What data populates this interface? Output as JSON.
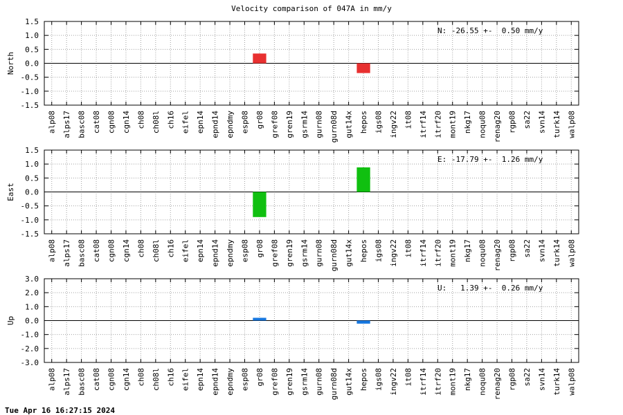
{
  "chart_data": {
    "type": "bar",
    "title": "Velocity comparison of 047A in mm/y",
    "categories": [
      "alp08",
      "alps17",
      "basc08",
      "cat08",
      "cgn08",
      "cgn14",
      "ch08",
      "ch08l",
      "ch16",
      "eifel",
      "epn14",
      "epnd14",
      "epndmy",
      "esp08",
      "gr08",
      "gref08",
      "gren19",
      "gsrm14",
      "gurn08",
      "gurn08d",
      "gut14x",
      "hepos",
      "igs08",
      "ingv22",
      "it08",
      "itrf14",
      "itrf20",
      "mont19",
      "nkg17",
      "noqu08",
      "renag20",
      "rgp08",
      "sa22",
      "svn14",
      "turk14",
      "walp08"
    ],
    "panels": [
      {
        "ylabel": "North",
        "ylim": [
          -1.5,
          1.5
        ],
        "yticks": [
          "1.5",
          "1.0",
          "0.5",
          "0.0",
          "-0.5",
          "-1.0",
          "-1.5"
        ],
        "annotation": "N: -26.55 +-  0.50 mm/y",
        "color": "#e83030",
        "values": {
          "gr08": 0.35,
          "hepos": -0.35
        }
      },
      {
        "ylabel": "East",
        "ylim": [
          -1.5,
          1.5
        ],
        "yticks": [
          "1.5",
          "1.0",
          "0.5",
          "0.0",
          "-0.5",
          "-1.0",
          "-1.5"
        ],
        "annotation": "E: -17.79 +-  1.26 mm/y",
        "color": "#10c010",
        "values": {
          "gr08": -0.9,
          "hepos": 0.88
        }
      },
      {
        "ylabel": "Up",
        "ylim": [
          -3.0,
          3.0
        ],
        "yticks": [
          "3.0",
          "2.0",
          "1.0",
          "0.0",
          "-1.0",
          "-2.0",
          "-3.0"
        ],
        "annotation": "U:   1.39 +-  0.26 mm/y",
        "color": "#1878e0",
        "values": {
          "gr08": 0.2,
          "hepos": -0.22
        }
      }
    ],
    "grid": true
  },
  "footer": {
    "timestamp": "Tue Apr 16 16:27:15 2024"
  }
}
